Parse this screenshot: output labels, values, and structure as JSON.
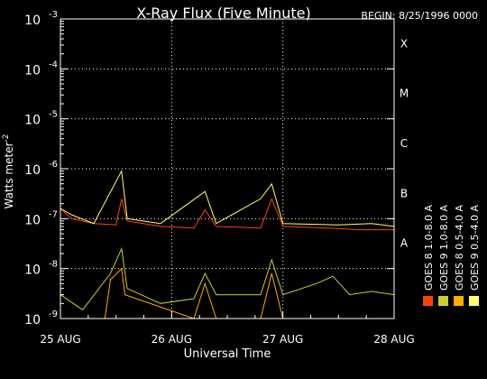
{
  "chart_data": {
    "type": "line",
    "title": "X-Ray Flux (Five Minute)",
    "begin_label": "BEGIN: 8/25/1996 0000",
    "xlabel": "Universal Time",
    "ylabel": "Watts meter",
    "ylabel_exp": "-2",
    "x_ticks": [
      "25 AUG",
      "26 AUG",
      "27 AUG",
      "28 AUG"
    ],
    "x_range_days": [
      0,
      3
    ],
    "y_scale": "log",
    "ylim": [
      1e-09,
      0.001
    ],
    "y_ticks": [
      {
        "base": "10",
        "exp": "-9"
      },
      {
        "base": "10",
        "exp": "-8"
      },
      {
        "base": "10",
        "exp": "-7"
      },
      {
        "base": "10",
        "exp": "-6"
      },
      {
        "base": "10",
        "exp": "-5"
      },
      {
        "base": "10",
        "exp": "-4"
      },
      {
        "base": "10",
        "exp": "-3"
      }
    ],
    "flare_classes": [
      {
        "label": "A",
        "level": 1e-08
      },
      {
        "label": "B",
        "level": 1e-07
      },
      {
        "label": "C",
        "level": 1e-06
      },
      {
        "label": "M",
        "level": 1e-05
      },
      {
        "label": "X",
        "level": 0.0001
      }
    ],
    "grid": "dotted",
    "legend_position": "right-vertical",
    "series": [
      {
        "name": "GOES 8 1.0-8.0 A",
        "color": "#ff4400",
        "points": [
          [
            0,
            1.6e-07
          ],
          [
            0.1,
            1e-07
          ],
          [
            0.3,
            8e-08
          ],
          [
            0.5,
            7.5e-08
          ],
          [
            0.55,
            2.5e-07
          ],
          [
            0.6,
            9e-08
          ],
          [
            0.9,
            7e-08
          ],
          [
            1.2,
            6.5e-08
          ],
          [
            1.3,
            1.5e-07
          ],
          [
            1.4,
            7e-08
          ],
          [
            1.8,
            6.5e-08
          ],
          [
            1.9,
            2.5e-07
          ],
          [
            2.0,
            7e-08
          ],
          [
            2.4,
            6.5e-08
          ],
          [
            2.7,
            6e-08
          ],
          [
            3.0,
            6e-08
          ]
        ]
      },
      {
        "name": "GOES 8 0.5-4.0 A",
        "color": "#ffaa00",
        "points": [
          [
            0,
            1e-09
          ],
          [
            0.4,
            1e-09
          ],
          [
            0.45,
            6e-09
          ],
          [
            0.55,
            1e-08
          ],
          [
            0.58,
            3e-09
          ],
          [
            1.2,
            1e-09
          ],
          [
            1.3,
            5e-09
          ],
          [
            1.4,
            1e-09
          ],
          [
            1.8,
            1e-09
          ],
          [
            1.9,
            8e-09
          ],
          [
            2.0,
            1e-09
          ],
          [
            3.0,
            1e-09
          ]
        ]
      },
      {
        "name": "GOES 9 0.5-4.0 A",
        "color": "#ffff66",
        "points": [
          [
            0,
            1.6e-07
          ],
          [
            0.1,
            1.2e-07
          ],
          [
            0.3,
            8e-08
          ],
          [
            0.55,
            9e-07
          ],
          [
            0.6,
            1e-07
          ],
          [
            0.9,
            8e-08
          ],
          [
            1.3,
            3.5e-07
          ],
          [
            1.4,
            8e-08
          ],
          [
            1.8,
            2.5e-07
          ],
          [
            1.9,
            5e-07
          ],
          [
            2.0,
            8e-08
          ],
          [
            2.5,
            7.5e-08
          ],
          [
            2.8,
            8e-08
          ],
          [
            3.0,
            7e-08
          ]
        ]
      },
      {
        "name": "GOES 9 1.0-8.0 A",
        "color": "#cccc33",
        "points": [
          [
            0,
            3e-09
          ],
          [
            0.2,
            1.5e-09
          ],
          [
            0.45,
            8e-09
          ],
          [
            0.55,
            2.5e-08
          ],
          [
            0.6,
            4e-09
          ],
          [
            0.9,
            2e-09
          ],
          [
            1.2,
            2.5e-09
          ],
          [
            1.3,
            8e-09
          ],
          [
            1.4,
            3e-09
          ],
          [
            1.8,
            3e-09
          ],
          [
            1.9,
            1.5e-08
          ],
          [
            2.0,
            3e-09
          ],
          [
            2.3,
            5e-09
          ],
          [
            2.45,
            7e-09
          ],
          [
            2.6,
            3e-09
          ],
          [
            2.8,
            3.5e-09
          ],
          [
            3.0,
            3e-09
          ]
        ]
      }
    ]
  }
}
